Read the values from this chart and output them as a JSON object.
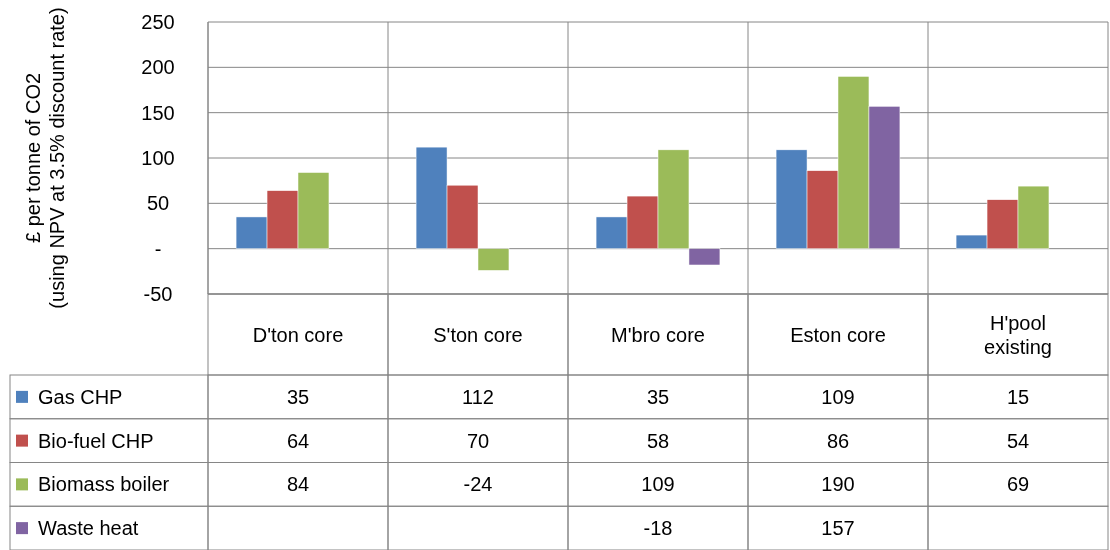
{
  "chart_data": {
    "type": "bar",
    "ylabel": "£ per tonne of CO2 (using NPV at 3.5% discount rate)",
    "categories": [
      "D'ton core",
      "S'ton core",
      "M'bro core",
      "Eston core",
      "H'pool existing"
    ],
    "series": [
      {
        "name": "Gas CHP",
        "color": "#4f81bd",
        "values": [
          35,
          112,
          35,
          109,
          15
        ]
      },
      {
        "name": "Bio-fuel CHP",
        "color": "#c0504d",
        "values": [
          64,
          70,
          58,
          86,
          54
        ]
      },
      {
        "name": "Biomass boiler",
        "color": "#9bbb59",
        "values": [
          84,
          -24,
          109,
          190,
          69
        ]
      },
      {
        "name": "Waste heat",
        "color": "#8064a2",
        "values": [
          null,
          null,
          -18,
          157,
          null
        ]
      }
    ],
    "ylim": [
      -50,
      250
    ],
    "yticks": [
      -50,
      {
        "value": 0,
        "label": "-"
      },
      50,
      100,
      150,
      200,
      250
    ],
    "grid": "y",
    "legend": "bottom",
    "data_labels": true
  }
}
